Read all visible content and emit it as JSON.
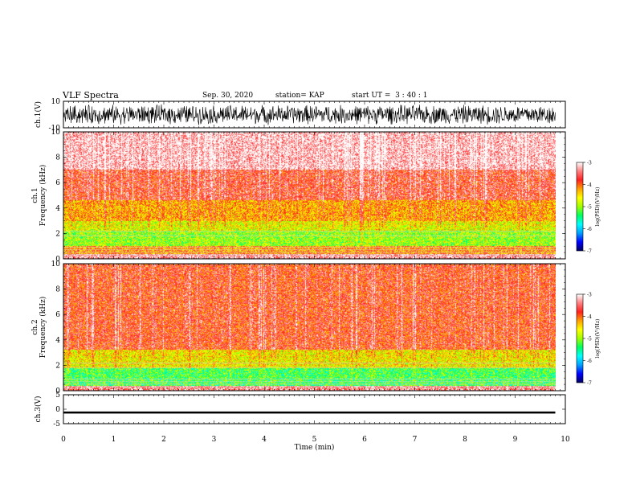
{
  "header": {
    "title": "VLF Spectra",
    "date": "Sep. 30, 2020",
    "station": "station= KAP",
    "start": "start UT =  3 : 40 : 1"
  },
  "colors": {
    "spectrum_stops": [
      "#000060",
      "#0000ff",
      "#00a0ff",
      "#00ffff",
      "#00ff60",
      "#a0ff00",
      "#ffff00",
      "#ffa000",
      "#ff2020",
      "#ff8080",
      "#ffffff"
    ]
  },
  "chart_data": [
    {
      "type": "line",
      "ylabel": "ch.1(V)",
      "ylim": [
        -10,
        10
      ],
      "yticks": [
        "10",
        "-10"
      ],
      "description_signal": "broadband noise",
      "amplitude_approx": 8
    },
    {
      "type": "heatmap",
      "ylabel_line1": "ch.1",
      "ylabel_line2": "Frequency (kHz)",
      "ylim": [
        0,
        10
      ],
      "yticks": [
        "10",
        "8",
        "6",
        "4",
        "2",
        "0"
      ],
      "colorbar": {
        "label": "log(PSD)(V²/Hz)",
        "range": [
          -7,
          -3
        ],
        "ticks": [
          "-3",
          "-4",
          "-5",
          "-6",
          "-7"
        ]
      },
      "bands_khz": [
        {
          "from": 0,
          "to": 0.4,
          "level": -3.3
        },
        {
          "from": 0.4,
          "to": 1.0,
          "level": -4.2
        },
        {
          "from": 1.0,
          "to": 2.2,
          "level": -5.0
        },
        {
          "from": 2.2,
          "to": 3.0,
          "level": -4.7
        },
        {
          "from": 3.0,
          "to": 4.6,
          "level": -4.3
        },
        {
          "from": 4.6,
          "to": 7.0,
          "level": -3.7
        },
        {
          "from": 7.0,
          "to": 10.0,
          "level": -3.2
        }
      ]
    },
    {
      "type": "heatmap",
      "ylabel_line1": "ch.2",
      "ylabel_line2": "Frequency (kHz)",
      "ylim": [
        0,
        10
      ],
      "yticks": [
        "10",
        "8",
        "6",
        "4",
        "2",
        "0"
      ],
      "colorbar": {
        "label": "log(PSD)(V²/Hz)",
        "range": [
          -7,
          -3
        ],
        "ticks": [
          "-3",
          "-4",
          "-5",
          "-6",
          "-7"
        ]
      },
      "bands_khz": [
        {
          "from": 0,
          "to": 0.4,
          "level": -3.4
        },
        {
          "from": 0.4,
          "to": 1.8,
          "level": -5.3
        },
        {
          "from": 1.8,
          "to": 3.2,
          "level": -4.6
        },
        {
          "from": 3.2,
          "to": 10.0,
          "level": -3.8
        }
      ]
    },
    {
      "type": "line",
      "ylabel": "ch.3(V)",
      "ylim": [
        -5,
        5
      ],
      "yticks": [
        "5",
        "0",
        "-5"
      ],
      "band_level": [
        -1.5,
        -0.8
      ],
      "xlabel": "Time (min)",
      "xlim": [
        0,
        10
      ],
      "xticks": [
        "0",
        "1",
        "2",
        "3",
        "4",
        "5",
        "6",
        "7",
        "8",
        "9",
        "10"
      ],
      "data_end_min": 9.8
    }
  ]
}
